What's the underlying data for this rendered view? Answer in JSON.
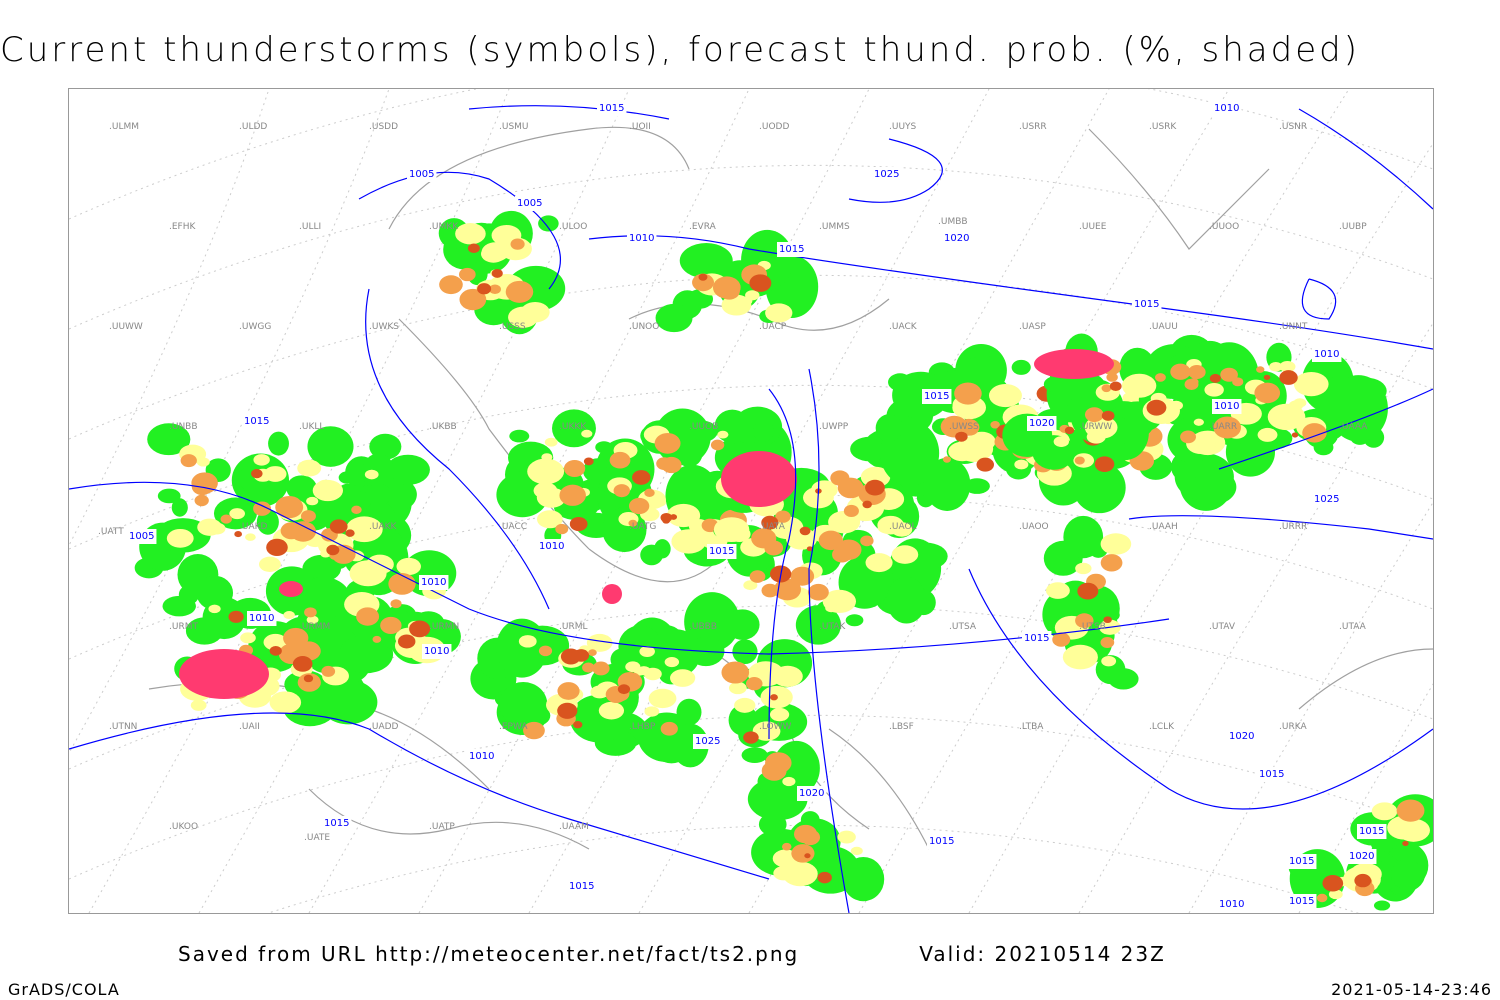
{
  "title": "Current thunderstorms (symbols), forecast thund. prob. (%, shaded)",
  "footer": {
    "source": "Saved from URL http://meteocenter.net/fact/ts2.png",
    "valid": "Valid: 20210514 23Z",
    "software": "GrADS/COLA",
    "timestamp": "2021-05-14-23:46"
  },
  "colors": {
    "prob_low": "#22f022",
    "prob_mid": "#ffff99",
    "prob_high": "#f4a04c",
    "prob_very_high": "#d9541f",
    "thunderstorm_symbols": "#ff3a70",
    "isobars": "#0000ff",
    "coastlines": "#a0a0a0"
  },
  "isobar_labels": [
    "1015",
    "1005",
    "1005",
    "1010",
    "1015",
    "1025",
    "1020",
    "1010",
    "1015",
    "1010",
    "1015",
    "1010",
    "1020",
    "1015",
    "1010",
    "1005",
    "1010",
    "1015",
    "1025",
    "1010",
    "1010",
    "1010",
    "1015",
    "1025",
    "1015",
    "1020",
    "1015",
    "1020",
    "1015",
    "1015",
    "1015",
    "1015",
    "1020",
    "1015",
    "1010"
  ],
  "stations": [
    "ULMM",
    "ULDD",
    "USDD",
    "USMU",
    "UOII",
    "UODD",
    "UUYS",
    "USRR",
    "USRK",
    "USNR",
    "EFHK",
    "ULLI",
    "UMKK",
    "ULOO",
    "EVRA",
    "UMMS",
    "UMBB",
    "UUEE",
    "UUOO",
    "UUBP",
    "UUWW",
    "UWGG",
    "UWKS",
    "USSS",
    "UNOO",
    "UACP",
    "UACK",
    "UASP",
    "UAUU",
    "UNNT",
    "UNBB",
    "UKLL",
    "UKBB",
    "UKKK",
    "UUOB",
    "UWPP",
    "UWSS",
    "URWW",
    "UARR",
    "UAAA",
    "UATT",
    "UAKD",
    "UAKK",
    "UACC",
    "UATG",
    "UATA",
    "UAOL",
    "UAOO",
    "UAAH",
    "URRR",
    "URMT",
    "URMM",
    "URMN",
    "URML",
    "UBBB",
    "UTAK",
    "UTSA",
    "UTSB",
    "UTAV",
    "UTAA",
    "UTNN",
    "UAII",
    "UADD",
    "EPWA",
    "LHBP",
    "LOWW",
    "LBSF",
    "LTBA",
    "LCLK",
    "URKA",
    "UKOO",
    "UATE",
    "UATP",
    "UAAM"
  ]
}
